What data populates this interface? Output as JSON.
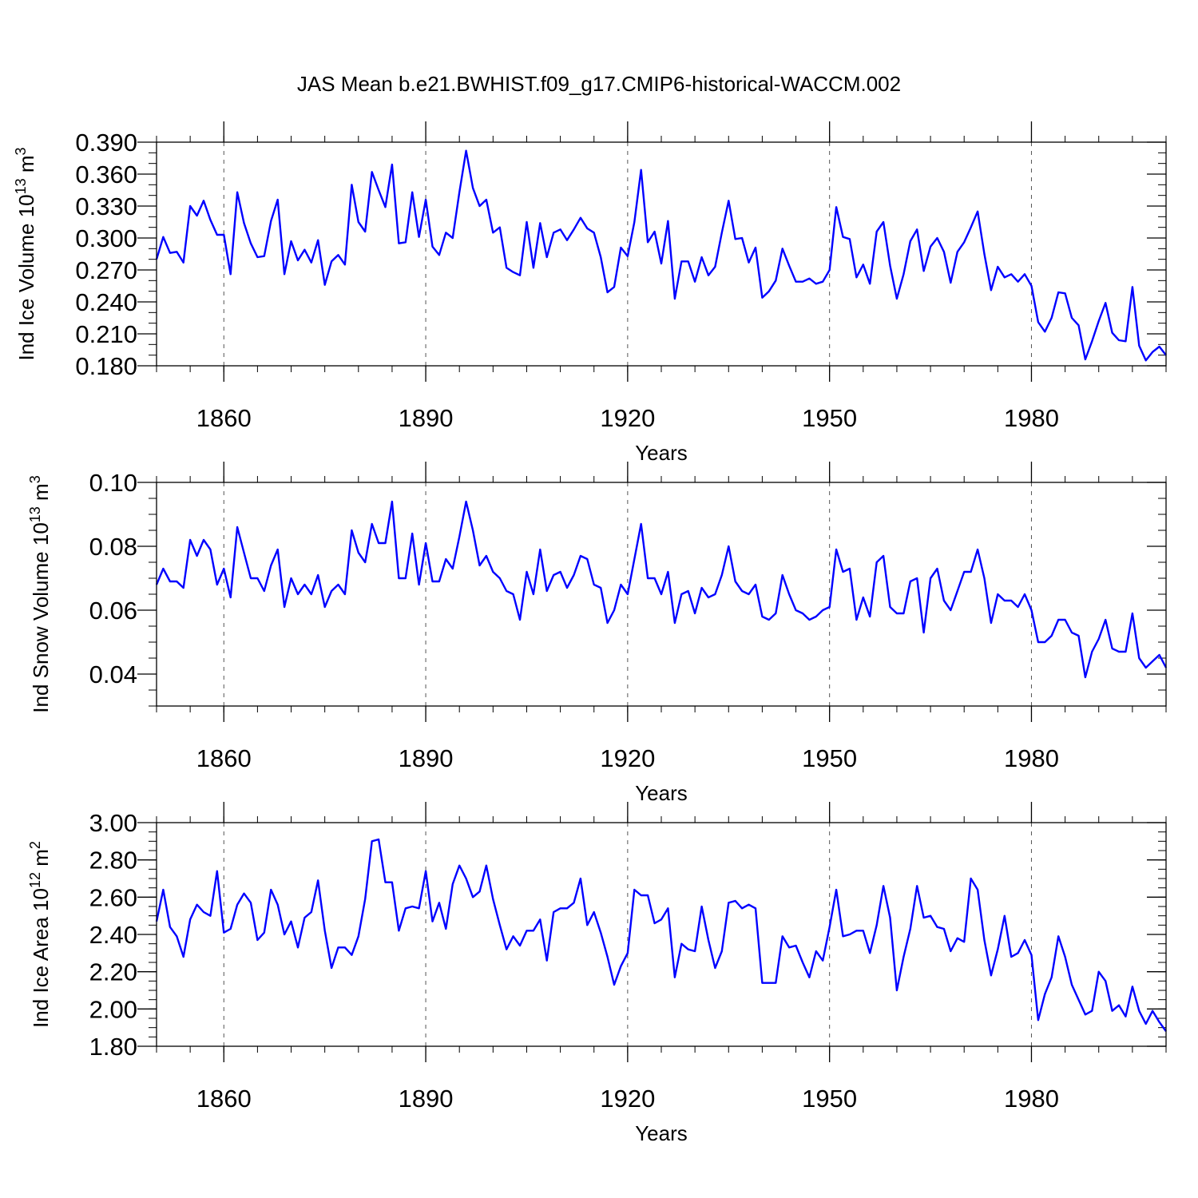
{
  "title": "JAS Mean b.e21.BWHIST.f09_g17.CMIP6-historical-WACCM.002",
  "line_color": "#0000ff",
  "chart_data": [
    {
      "type": "line",
      "ylabel": {
        "main": "Ind Ice Volume 10",
        "exp": "13",
        "unit": " m",
        "unit_exp": "3"
      },
      "xlabel": "Years",
      "xlim": [
        1850,
        2000
      ],
      "ylim": [
        0.18,
        0.39
      ],
      "x_major_ticks": [
        1860,
        1890,
        1920,
        1950,
        1980
      ],
      "x_tick_labels": [
        "1860",
        "1890",
        "1920",
        "1950",
        "1980"
      ],
      "y_major_ticks": [
        0.18,
        0.21,
        0.24,
        0.27,
        0.3,
        0.33,
        0.36,
        0.39
      ],
      "y_tick_labels": [
        "0.180",
        "0.210",
        "0.240",
        "0.270",
        "0.300",
        "0.330",
        "0.360",
        "0.390"
      ],
      "y_minor_step": 0.01,
      "x_start": 1850,
      "series": [
        {
          "name": "Ind Ice Volume",
          "values": [
            0.28,
            0.301,
            0.286,
            0.287,
            0.277,
            0.33,
            0.321,
            0.335,
            0.317,
            0.303,
            0.303,
            0.266,
            0.343,
            0.314,
            0.295,
            0.282,
            0.283,
            0.316,
            0.336,
            0.266,
            0.297,
            0.279,
            0.289,
            0.277,
            0.298,
            0.256,
            0.278,
            0.284,
            0.275,
            0.35,
            0.315,
            0.306,
            0.362,
            0.345,
            0.329,
            0.369,
            0.295,
            0.296,
            0.343,
            0.301,
            0.336,
            0.292,
            0.284,
            0.305,
            0.3,
            0.343,
            0.382,
            0.347,
            0.33,
            0.336,
            0.305,
            0.31,
            0.272,
            0.268,
            0.265,
            0.315,
            0.272,
            0.314,
            0.282,
            0.305,
            0.308,
            0.298,
            0.308,
            0.319,
            0.309,
            0.305,
            0.282,
            0.249,
            0.254,
            0.291,
            0.283,
            0.315,
            0.364,
            0.296,
            0.306,
            0.276,
            0.316,
            0.243,
            0.278,
            0.278,
            0.259,
            0.282,
            0.265,
            0.273,
            0.305,
            0.335,
            0.299,
            0.3,
            0.277,
            0.291,
            0.244,
            0.25,
            0.26,
            0.29,
            0.274,
            0.259,
            0.259,
            0.262,
            0.257,
            0.259,
            0.27,
            0.329,
            0.301,
            0.299,
            0.263,
            0.275,
            0.257,
            0.306,
            0.315,
            0.274,
            0.243,
            0.266,
            0.297,
            0.308,
            0.269,
            0.292,
            0.3,
            0.287,
            0.258,
            0.287,
            0.296,
            0.31,
            0.325,
            0.285,
            0.251,
            0.273,
            0.263,
            0.266,
            0.259,
            0.266,
            0.255,
            0.221,
            0.212,
            0.225,
            0.249,
            0.248,
            0.225,
            0.218,
            0.186,
            0.203,
            0.222,
            0.239,
            0.211,
            0.204,
            0.203,
            0.254,
            0.199,
            0.185,
            0.193,
            0.198,
            0.19
          ]
        }
      ]
    },
    {
      "type": "line",
      "ylabel": {
        "main": "Ind Snow Volume 10",
        "exp": "13",
        "unit": " m",
        "unit_exp": "3"
      },
      "xlabel": "Years",
      "xlim": [
        1850,
        2000
      ],
      "ylim": [
        0.03,
        0.1
      ],
      "x_major_ticks": [
        1860,
        1890,
        1920,
        1950,
        1980
      ],
      "x_tick_labels": [
        "1860",
        "1890",
        "1920",
        "1950",
        "1980"
      ],
      "y_major_ticks": [
        0.04,
        0.06,
        0.08,
        0.1
      ],
      "y_tick_labels": [
        "0.04",
        "0.06",
        "0.08",
        "0.10"
      ],
      "y_minor_step": 0.005,
      "x_start": 1850,
      "series": [
        {
          "name": "Ind Snow Volume",
          "values": [
            0.068,
            0.073,
            0.069,
            0.069,
            0.067,
            0.082,
            0.077,
            0.082,
            0.079,
            0.068,
            0.073,
            0.064,
            0.086,
            0.078,
            0.07,
            0.07,
            0.066,
            0.074,
            0.079,
            0.061,
            0.07,
            0.065,
            0.068,
            0.065,
            0.071,
            0.061,
            0.066,
            0.068,
            0.065,
            0.085,
            0.078,
            0.075,
            0.087,
            0.081,
            0.081,
            0.094,
            0.07,
            0.07,
            0.084,
            0.068,
            0.081,
            0.069,
            0.069,
            0.076,
            0.073,
            0.083,
            0.094,
            0.085,
            0.074,
            0.077,
            0.072,
            0.07,
            0.066,
            0.065,
            0.057,
            0.072,
            0.065,
            0.079,
            0.066,
            0.071,
            0.072,
            0.067,
            0.071,
            0.077,
            0.076,
            0.068,
            0.067,
            0.056,
            0.06,
            0.068,
            0.065,
            0.076,
            0.087,
            0.07,
            0.07,
            0.065,
            0.072,
            0.056,
            0.065,
            0.066,
            0.059,
            0.067,
            0.064,
            0.065,
            0.071,
            0.08,
            0.069,
            0.066,
            0.065,
            0.068,
            0.058,
            0.057,
            0.059,
            0.071,
            0.065,
            0.06,
            0.059,
            0.057,
            0.058,
            0.06,
            0.061,
            0.079,
            0.072,
            0.073,
            0.057,
            0.064,
            0.058,
            0.075,
            0.077,
            0.061,
            0.059,
            0.059,
            0.069,
            0.07,
            0.053,
            0.07,
            0.073,
            0.063,
            0.06,
            0.066,
            0.072,
            0.072,
            0.079,
            0.07,
            0.056,
            0.065,
            0.063,
            0.063,
            0.061,
            0.065,
            0.06,
            0.05,
            0.05,
            0.052,
            0.057,
            0.057,
            0.053,
            0.052,
            0.039,
            0.047,
            0.051,
            0.057,
            0.048,
            0.047,
            0.047,
            0.059,
            0.045,
            0.042,
            0.044,
            0.046,
            0.042
          ]
        }
      ]
    },
    {
      "type": "line",
      "ylabel": {
        "main": "Ind Ice Area 10",
        "exp": "12",
        "unit": " m",
        "unit_exp": "2"
      },
      "xlabel": "Years",
      "xlim": [
        1850,
        2000
      ],
      "ylim": [
        1.8,
        3.0
      ],
      "x_major_ticks": [
        1860,
        1890,
        1920,
        1950,
        1980
      ],
      "x_tick_labels": [
        "1860",
        "1890",
        "1920",
        "1950",
        "1980"
      ],
      "y_major_ticks": [
        1.8,
        2.0,
        2.2,
        2.4,
        2.6,
        2.8,
        3.0
      ],
      "y_tick_labels": [
        "1.80",
        "2.00",
        "2.20",
        "2.40",
        "2.60",
        "2.80",
        "3.00"
      ],
      "y_minor_step": 0.05,
      "x_start": 1850,
      "series": [
        {
          "name": "Ind Ice Area",
          "values": [
            2.47,
            2.64,
            2.44,
            2.39,
            2.28,
            2.48,
            2.56,
            2.52,
            2.5,
            2.74,
            2.41,
            2.43,
            2.56,
            2.62,
            2.57,
            2.37,
            2.41,
            2.64,
            2.56,
            2.4,
            2.47,
            2.33,
            2.49,
            2.52,
            2.69,
            2.42,
            2.22,
            2.33,
            2.33,
            2.29,
            2.39,
            2.59,
            2.9,
            2.91,
            2.68,
            2.68,
            2.42,
            2.54,
            2.55,
            2.54,
            2.74,
            2.47,
            2.57,
            2.43,
            2.67,
            2.77,
            2.7,
            2.6,
            2.63,
            2.77,
            2.59,
            2.45,
            2.32,
            2.39,
            2.34,
            2.42,
            2.42,
            2.48,
            2.26,
            2.52,
            2.54,
            2.54,
            2.57,
            2.7,
            2.45,
            2.52,
            2.41,
            2.28,
            2.13,
            2.23,
            2.3,
            2.64,
            2.61,
            2.61,
            2.46,
            2.48,
            2.54,
            2.17,
            2.35,
            2.32,
            2.31,
            2.55,
            2.37,
            2.22,
            2.31,
            2.57,
            2.58,
            2.54,
            2.56,
            2.54,
            2.14,
            2.14,
            2.14,
            2.39,
            2.33,
            2.34,
            2.25,
            2.17,
            2.31,
            2.26,
            2.44,
            2.64,
            2.39,
            2.4,
            2.42,
            2.42,
            2.3,
            2.45,
            2.66,
            2.49,
            2.1,
            2.28,
            2.43,
            2.66,
            2.49,
            2.5,
            2.44,
            2.43,
            2.31,
            2.38,
            2.36,
            2.7,
            2.64,
            2.37,
            2.18,
            2.32,
            2.5,
            2.28,
            2.3,
            2.37,
            2.29,
            1.94,
            2.08,
            2.17,
            2.39,
            2.28,
            2.13,
            2.05,
            1.97,
            1.99,
            2.2,
            2.15,
            1.99,
            2.02,
            1.96,
            2.12,
            1.99,
            1.92,
            1.99,
            1.93,
            1.88
          ]
        }
      ]
    }
  ]
}
